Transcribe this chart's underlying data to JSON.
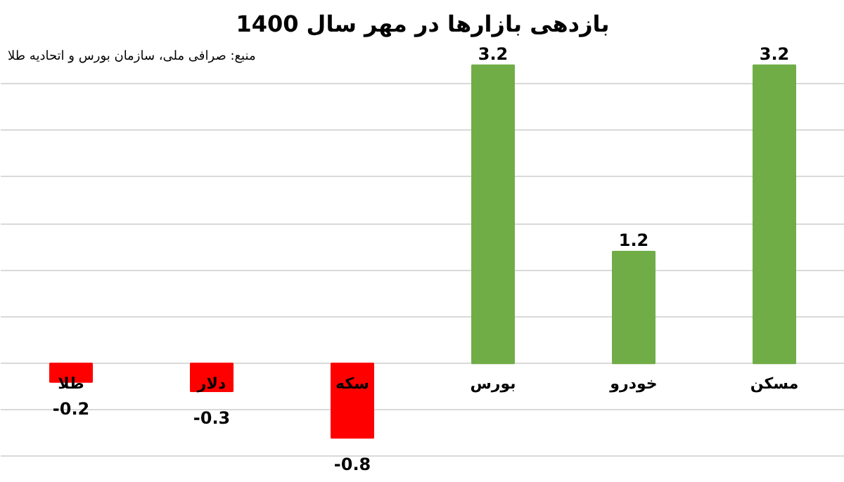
{
  "chart_data": {
    "type": "bar",
    "title": "بازدهی بازارها در مهر سال 1400",
    "categories": [
      "طلا",
      "دلار",
      "سکه",
      "بورس",
      "خودرو",
      "مسکن"
    ],
    "values": [
      -0.2,
      -0.3,
      -0.8,
      3.2,
      1.2,
      3.2
    ],
    "colors": [
      "#ff0000",
      "#ff0000",
      "#ff0000",
      "#70ad47",
      "#70ad47",
      "#70ad47"
    ],
    "yticks": [
      {
        "value": -1,
        "label": null
      },
      {
        "value": -0.5,
        "label": null
      },
      {
        "value": 0,
        "label": null
      },
      {
        "value": 0.5,
        "label": null
      },
      {
        "value": 1,
        "label": null
      },
      {
        "value": 1.5,
        "label": null
      },
      {
        "value": 2,
        "label": null
      },
      {
        "value": 2.5,
        "label": null
      },
      {
        "value": 3,
        "label": null
      }
    ],
    "grid": "y",
    "data_labels": true,
    "tick_labels": "x",
    "annotations": [
      "منبع: صرافی ملی، سازمان بورس و اتحادیه طلا"
    ]
  }
}
